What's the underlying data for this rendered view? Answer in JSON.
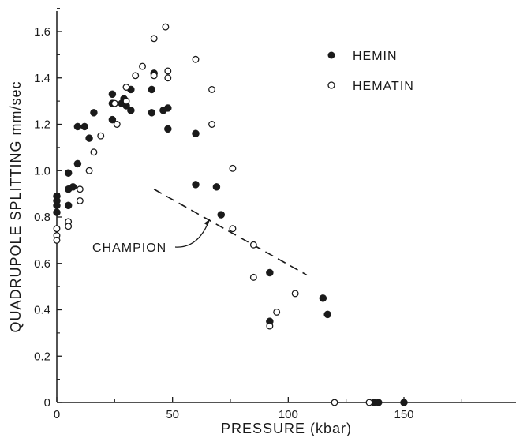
{
  "chart_data": {
    "type": "scatter",
    "title": "",
    "xlabel": "PRESSURE (kbar)",
    "ylabel": "QUADRUPOLE SPLITTING mm/sec",
    "xlim": [
      0,
      200
    ],
    "ylim": [
      0,
      1.7
    ],
    "x_ticks": [
      0,
      50,
      100,
      150
    ],
    "x_tick_labels": [
      "0",
      "50",
      "100",
      "150"
    ],
    "y_ticks": [
      0,
      0.2,
      0.4,
      0.6,
      0.8,
      1.0,
      1.2,
      1.4,
      1.6
    ],
    "y_tick_labels": [
      "0",
      "0.2",
      "0.4",
      "0.6",
      "0.8",
      "1.0",
      "1.2",
      "1.4",
      "1.6"
    ],
    "grid": false,
    "legend_position": "top-right",
    "series": [
      {
        "name": "HEMIN",
        "marker": "filled-circle",
        "color": "#1a1a1a",
        "points": [
          [
            0,
            0.89
          ],
          [
            0,
            0.87
          ],
          [
            0,
            0.85
          ],
          [
            0,
            0.82
          ],
          [
            5,
            0.99
          ],
          [
            5,
            0.92
          ],
          [
            5,
            0.85
          ],
          [
            7,
            0.93
          ],
          [
            9,
            1.03
          ],
          [
            9,
            1.19
          ],
          [
            12,
            1.19
          ],
          [
            14,
            1.14
          ],
          [
            16,
            1.25
          ],
          [
            24,
            1.33
          ],
          [
            24,
            1.29
          ],
          [
            24,
            1.22
          ],
          [
            28,
            1.29
          ],
          [
            29,
            1.31
          ],
          [
            30,
            1.28
          ],
          [
            32,
            1.35
          ],
          [
            32,
            1.26
          ],
          [
            41,
            1.35
          ],
          [
            41,
            1.25
          ],
          [
            42,
            1.42
          ],
          [
            46,
            1.26
          ],
          [
            48,
            1.27
          ],
          [
            48,
            1.18
          ],
          [
            60,
            1.16
          ],
          [
            60,
            0.94
          ],
          [
            69,
            0.93
          ],
          [
            71,
            0.81
          ],
          [
            92,
            0.56
          ],
          [
            92,
            0.35
          ],
          [
            115,
            0.45
          ],
          [
            117,
            0.38
          ],
          [
            137,
            0.0
          ],
          [
            139,
            0.0
          ],
          [
            150,
            0.0
          ]
        ]
      },
      {
        "name": "HEMATIN",
        "marker": "open-circle",
        "color": "#1a1a1a",
        "points": [
          [
            0,
            0.75
          ],
          [
            0,
            0.72
          ],
          [
            0,
            0.7
          ],
          [
            5,
            0.78
          ],
          [
            5,
            0.76
          ],
          [
            10,
            0.92
          ],
          [
            10,
            0.87
          ],
          [
            14,
            1.0
          ],
          [
            16,
            1.08
          ],
          [
            19,
            1.15
          ],
          [
            25,
            1.29
          ],
          [
            26,
            1.2
          ],
          [
            30,
            1.3
          ],
          [
            30,
            1.36
          ],
          [
            34,
            1.41
          ],
          [
            37,
            1.45
          ],
          [
            42,
            1.57
          ],
          [
            42,
            1.41
          ],
          [
            47,
            1.62
          ],
          [
            48,
            1.43
          ],
          [
            48,
            1.4
          ],
          [
            60,
            1.48
          ],
          [
            67,
            1.35
          ],
          [
            67,
            1.2
          ],
          [
            76,
            1.01
          ],
          [
            76,
            0.75
          ],
          [
            85,
            0.68
          ],
          [
            85,
            0.54
          ],
          [
            92,
            0.33
          ],
          [
            95,
            0.39
          ],
          [
            103,
            0.47
          ],
          [
            120,
            0.0
          ],
          [
            135,
            0.0
          ]
        ]
      }
    ],
    "annotations": [
      {
        "text": "CHAMPION",
        "line_style": "dashed",
        "line": [
          [
            42,
            0.92
          ],
          [
            108,
            0.55
          ]
        ],
        "arrow_to": [
          66,
          0.79
        ]
      }
    ]
  }
}
